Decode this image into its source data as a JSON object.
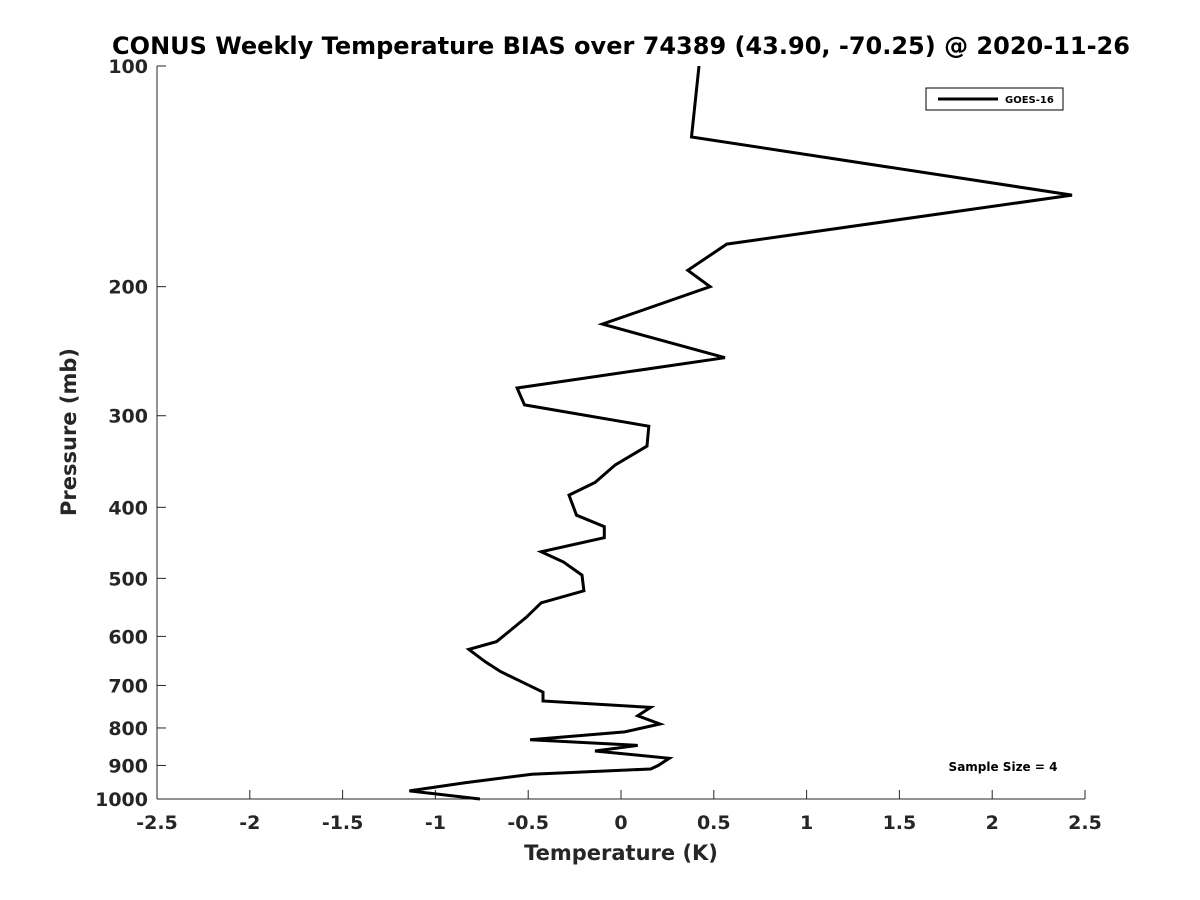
{
  "chart_data": {
    "type": "line",
    "title": "CONUS Weekly Temperature BIAS over 74389 (43.90, -70.25) @ 2020-11-26",
    "xlabel": "Temperature (K)",
    "ylabel": "Pressure (mb)",
    "xlim": [
      -2.5,
      2.5
    ],
    "ylim": [
      100,
      1000
    ],
    "y_scale": "log",
    "y_reversed": true,
    "grid": false,
    "legend_position": "top-right",
    "x_ticks": [
      "-2.5",
      "-2",
      "-1.5",
      "-1",
      "-0.5",
      "0",
      "0.5",
      "1",
      "1.5",
      "2",
      "2.5"
    ],
    "y_ticks": [
      "100",
      "200",
      "300",
      "400",
      "500",
      "600",
      "700",
      "800",
      "900",
      "1000"
    ],
    "series": [
      {
        "name": "GOES-16",
        "color": "#000000",
        "points": [
          {
            "x": 0.42,
            "y": 100
          },
          {
            "x": 0.38,
            "y": 125
          },
          {
            "x": 2.43,
            "y": 150
          },
          {
            "x": 0.57,
            "y": 175
          },
          {
            "x": 0.36,
            "y": 190
          },
          {
            "x": 0.48,
            "y": 200
          },
          {
            "x": -0.1,
            "y": 225
          },
          {
            "x": 0.56,
            "y": 250
          },
          {
            "x": -0.56,
            "y": 275
          },
          {
            "x": -0.52,
            "y": 290
          },
          {
            "x": 0.15,
            "y": 310
          },
          {
            "x": 0.14,
            "y": 330
          },
          {
            "x": -0.03,
            "y": 350
          },
          {
            "x": -0.14,
            "y": 370
          },
          {
            "x": -0.28,
            "y": 385
          },
          {
            "x": -0.24,
            "y": 410
          },
          {
            "x": -0.09,
            "y": 425
          },
          {
            "x": -0.09,
            "y": 440
          },
          {
            "x": -0.43,
            "y": 460
          },
          {
            "x": -0.31,
            "y": 475
          },
          {
            "x": -0.21,
            "y": 495
          },
          {
            "x": -0.2,
            "y": 520
          },
          {
            "x": -0.43,
            "y": 540
          },
          {
            "x": -0.51,
            "y": 565
          },
          {
            "x": -0.6,
            "y": 590
          },
          {
            "x": -0.67,
            "y": 610
          },
          {
            "x": -0.82,
            "y": 625
          },
          {
            "x": -0.73,
            "y": 650
          },
          {
            "x": -0.65,
            "y": 670
          },
          {
            "x": -0.52,
            "y": 695
          },
          {
            "x": -0.42,
            "y": 715
          },
          {
            "x": -0.42,
            "y": 735
          },
          {
            "x": 0.16,
            "y": 750
          },
          {
            "x": 0.09,
            "y": 770
          },
          {
            "x": 0.21,
            "y": 790
          },
          {
            "x": 0.02,
            "y": 810
          },
          {
            "x": -0.49,
            "y": 830
          },
          {
            "x": 0.09,
            "y": 845
          },
          {
            "x": -0.14,
            "y": 860
          },
          {
            "x": 0.26,
            "y": 880
          },
          {
            "x": 0.2,
            "y": 900
          },
          {
            "x": 0.16,
            "y": 910
          },
          {
            "x": -0.48,
            "y": 925
          },
          {
            "x": -0.84,
            "y": 950
          },
          {
            "x": -1.14,
            "y": 975
          },
          {
            "x": -0.76,
            "y": 1000
          }
        ]
      }
    ],
    "annotations": [
      "Sample Size = 4"
    ]
  }
}
